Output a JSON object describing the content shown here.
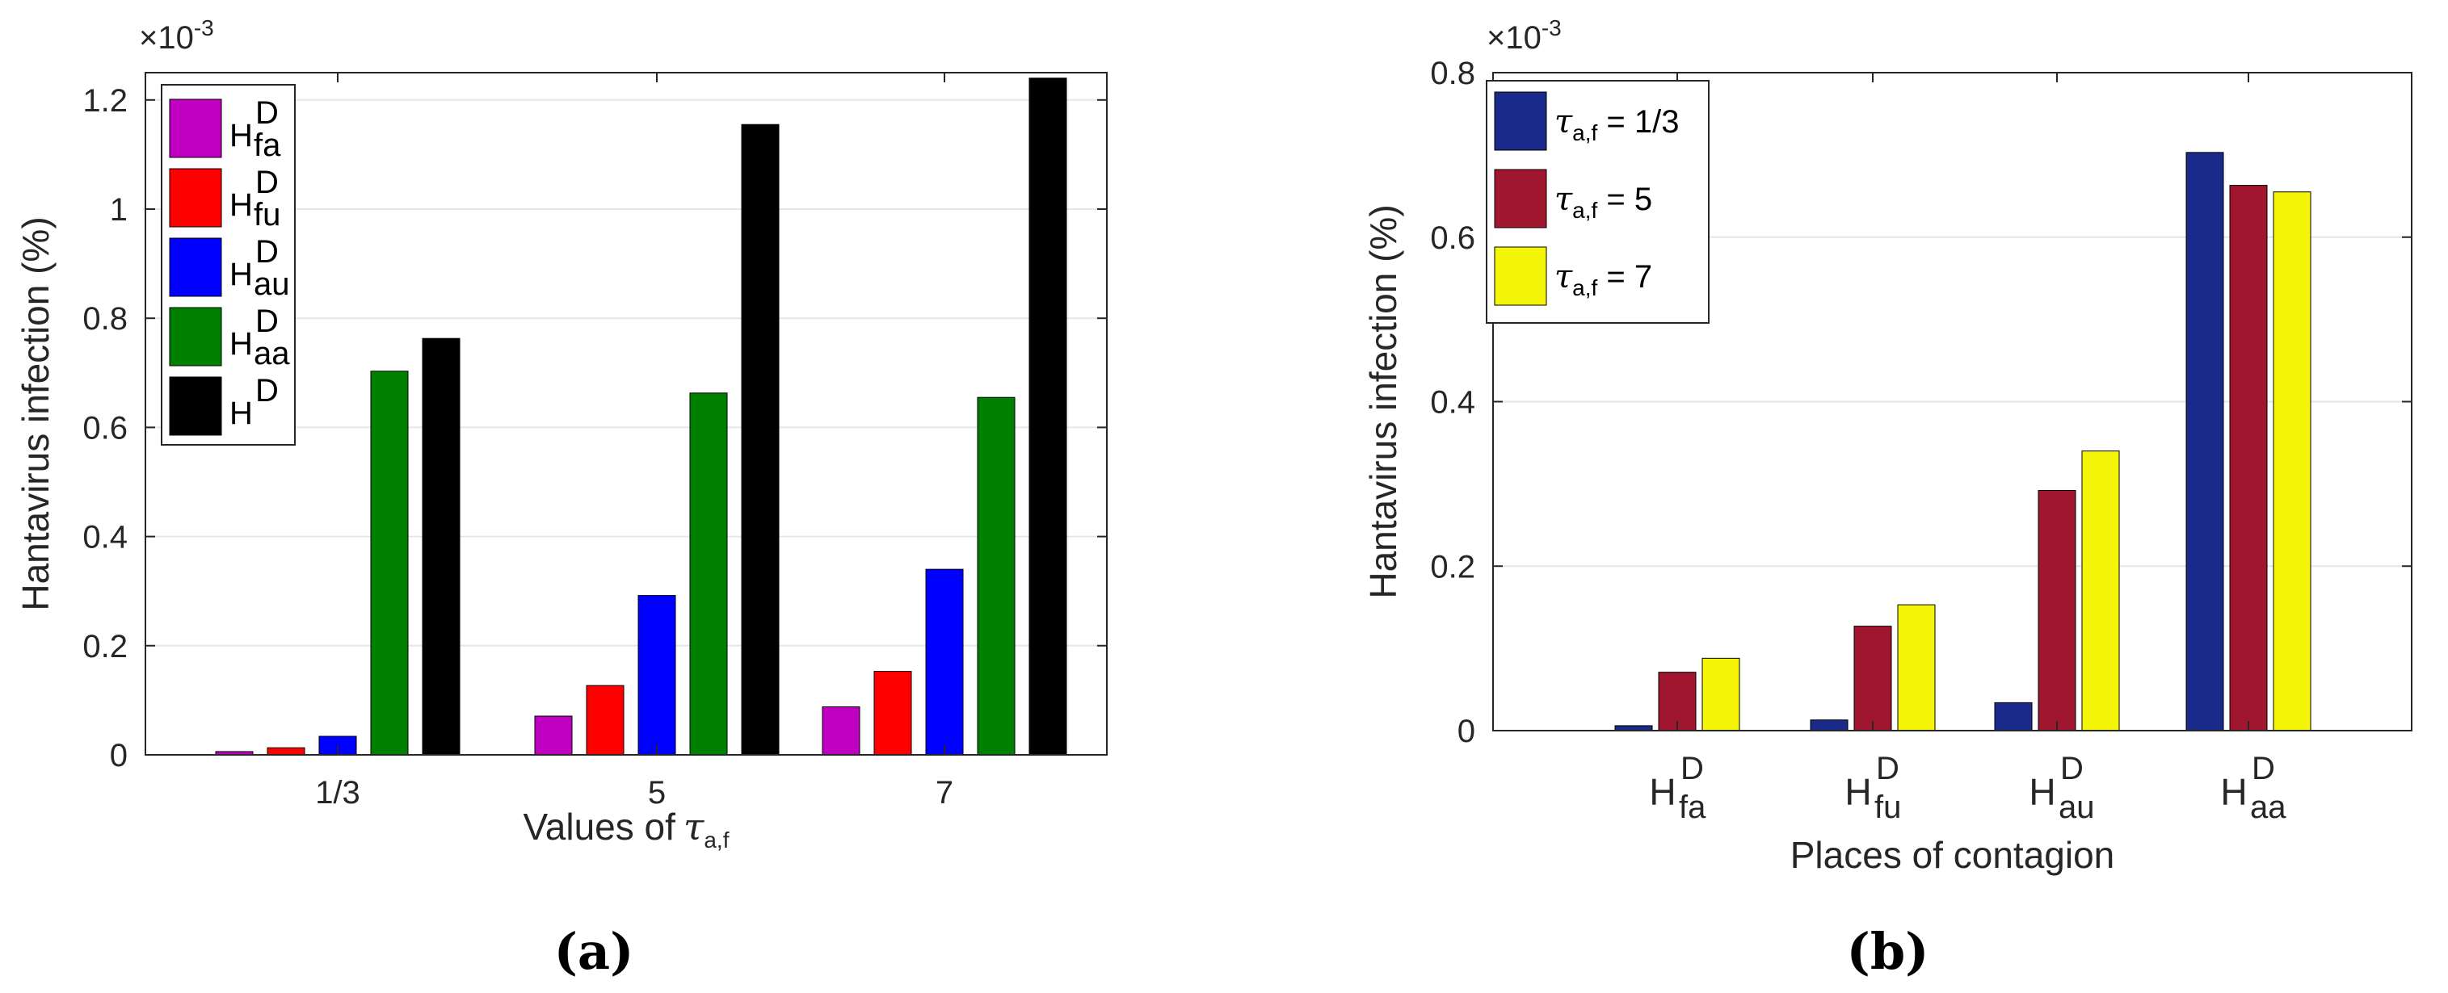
{
  "chart_data": [
    {
      "type": "bar",
      "panel_label": "(a)",
      "exponent_label": "×10",
      "exponent_power": "-3",
      "ylabel": "Hantavirus infection (%)",
      "xlabel": "Values of",
      "xlabel_symbol": "τ",
      "xlabel_subscript": "a,f",
      "categories": [
        "1/3",
        "5",
        "7"
      ],
      "ylim": [
        0,
        1.25
      ],
      "yticks": [
        "0",
        "0.2",
        "0.4",
        "0.6",
        "0.8",
        "1",
        "1.2"
      ],
      "ytick_values": [
        0,
        0.2,
        0.4,
        0.6,
        0.8,
        1.0,
        1.2
      ],
      "legend_placement": "top-left",
      "series": [
        {
          "name": "H",
          "sup": "D",
          "sub": "fa",
          "color": "#c000c0",
          "values": [
            0.006,
            0.071,
            0.088
          ]
        },
        {
          "name": "H",
          "sup": "D",
          "sub": "fu",
          "color": "#ff0000",
          "values": [
            0.013,
            0.127,
            0.153
          ]
        },
        {
          "name": "H",
          "sup": "D",
          "sub": "au",
          "color": "#0000ff",
          "values": [
            0.034,
            0.292,
            0.34
          ]
        },
        {
          "name": "H",
          "sup": "D",
          "sub": "aa",
          "color": "#008000",
          "values": [
            0.703,
            0.663,
            0.655
          ]
        },
        {
          "name": "H",
          "sup": "D",
          "sub": "",
          "color": "#000000",
          "values": [
            0.763,
            1.155,
            1.24
          ]
        }
      ]
    },
    {
      "type": "bar",
      "panel_label": "(b)",
      "exponent_label": "×10",
      "exponent_power": "-3",
      "ylabel": "Hantavirus infection (%)",
      "xlabel": "Places of contagion",
      "categories": [
        {
          "name": "H",
          "sup": "D",
          "sub": "fa"
        },
        {
          "name": "H",
          "sup": "D",
          "sub": "fu"
        },
        {
          "name": "H",
          "sup": "D",
          "sub": "au"
        },
        {
          "name": "H",
          "sup": "D",
          "sub": "aa"
        }
      ],
      "ylim": [
        0,
        0.8
      ],
      "yticks": [
        "0",
        "0.2",
        "0.4",
        "0.6",
        "0.8"
      ],
      "ytick_values": [
        0,
        0.2,
        0.4,
        0.6,
        0.8
      ],
      "legend_placement": "top-left",
      "series": [
        {
          "symbol": "τ",
          "sub": "a,f",
          "label": " = 1/3",
          "color": "#1a2a8a",
          "values": [
            0.006,
            0.013,
            0.034,
            0.703
          ]
        },
        {
          "symbol": "τ",
          "sub": "a,f",
          "label": " = 5",
          "color": "#a0162e",
          "values": [
            0.071,
            0.127,
            0.292,
            0.663
          ]
        },
        {
          "symbol": "τ",
          "sub": "a,f",
          "label": " = 7",
          "color": "#f5f50a",
          "values": [
            0.088,
            0.153,
            0.34,
            0.655
          ]
        }
      ]
    }
  ]
}
